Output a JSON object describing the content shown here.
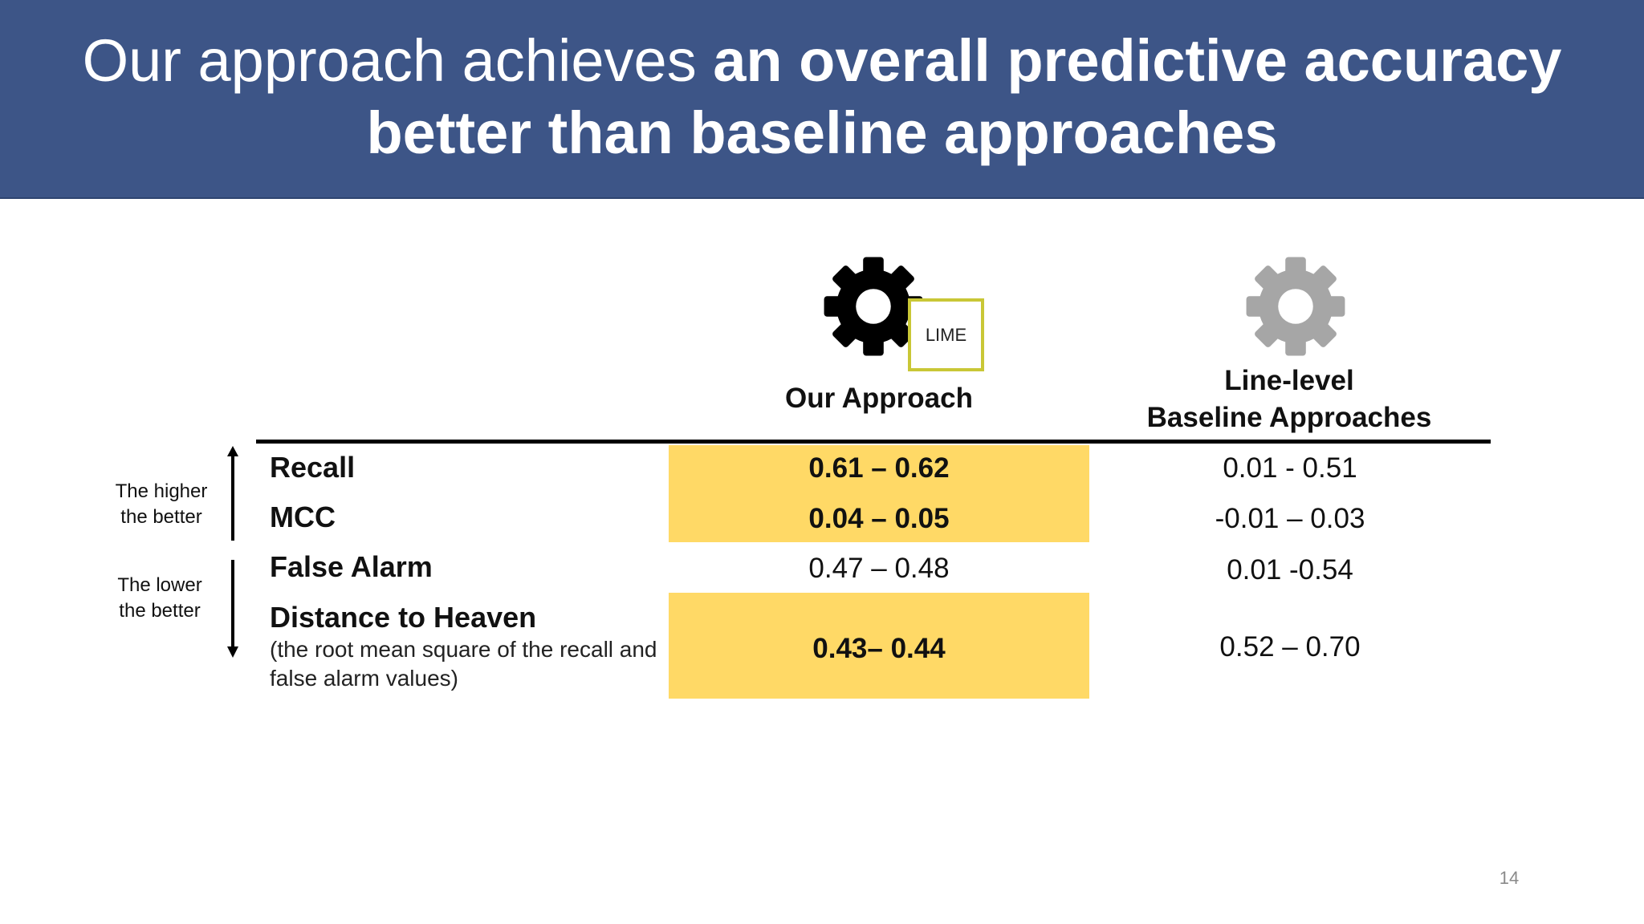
{
  "slide": {
    "title_line1_normal": "Our approach achieves ",
    "title_line1_bold": "an overall predictive accuracy",
    "title_line2": "better than baseline approaches",
    "page_number": "14"
  },
  "columns": {
    "ours": {
      "label": "Our Approach",
      "icon": "gear-icon",
      "icon_color": "#000000",
      "tag": "LIME"
    },
    "baseline": {
      "label_line1": "Line-level",
      "label_line2": "Baseline Approaches",
      "icon": "gear-icon",
      "icon_color": "#a6a6a6"
    }
  },
  "side_notes": {
    "higher_line1": "The higher",
    "higher_line2": "the better",
    "lower_line1": "The lower",
    "lower_line2": "the better"
  },
  "rows": [
    {
      "metric": "Recall",
      "ours": "0.61 – 0.62",
      "baseline": "0.01 - 0.51",
      "highlight": true
    },
    {
      "metric": "MCC",
      "ours": "0.04 – 0.05",
      "baseline": "-0.01 – 0.03",
      "highlight": true
    },
    {
      "metric": "False Alarm",
      "ours": "0.47 – 0.48",
      "baseline": "0.01 -0.54",
      "highlight": false
    },
    {
      "metric": "Distance to Heaven",
      "subtitle": "(the root mean square of the recall and false alarm values)",
      "ours": "0.43– 0.44",
      "baseline": "0.52 – 0.70",
      "highlight": true
    }
  ],
  "colors": {
    "header_bg": "#3d5587",
    "highlight": "#ffd966",
    "lime_border": "#c9c736"
  }
}
